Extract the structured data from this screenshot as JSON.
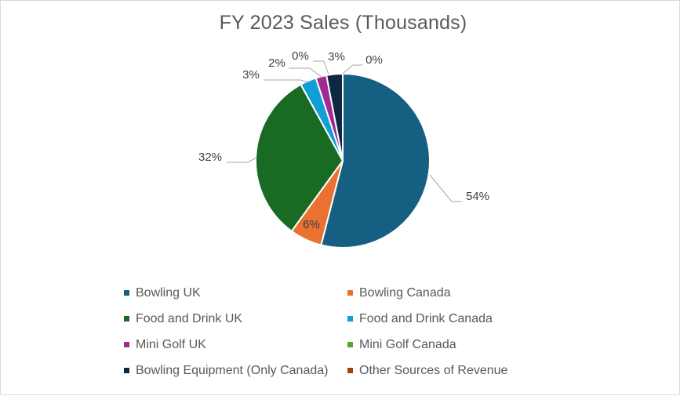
{
  "chart_data": {
    "type": "pie",
    "title": "FY 2023 Sales (Thousands)",
    "categories": [
      "Bowling UK",
      "Bowling Canada",
      "Food and Drink UK",
      "Food and Drink Canada",
      "Mini Golf UK",
      "Mini Golf Canada",
      "Bowling Equipment (Only Canada)",
      "Other Sources of Revenue"
    ],
    "values": [
      54,
      6,
      32,
      3,
      2,
      0,
      3,
      0
    ],
    "data_labels": [
      "54%",
      "6%",
      "32%",
      "3%",
      "2%",
      "0%",
      "3%",
      "0%"
    ],
    "colors": [
      "#156082",
      "#e97132",
      "#196b24",
      "#0f9ed5",
      "#a02b93",
      "#4ea72e",
      "#0e2841",
      "#a0410d"
    ],
    "legend_position": "bottom",
    "label_color": "#404040",
    "leader_color": "#a6a6a6"
  }
}
